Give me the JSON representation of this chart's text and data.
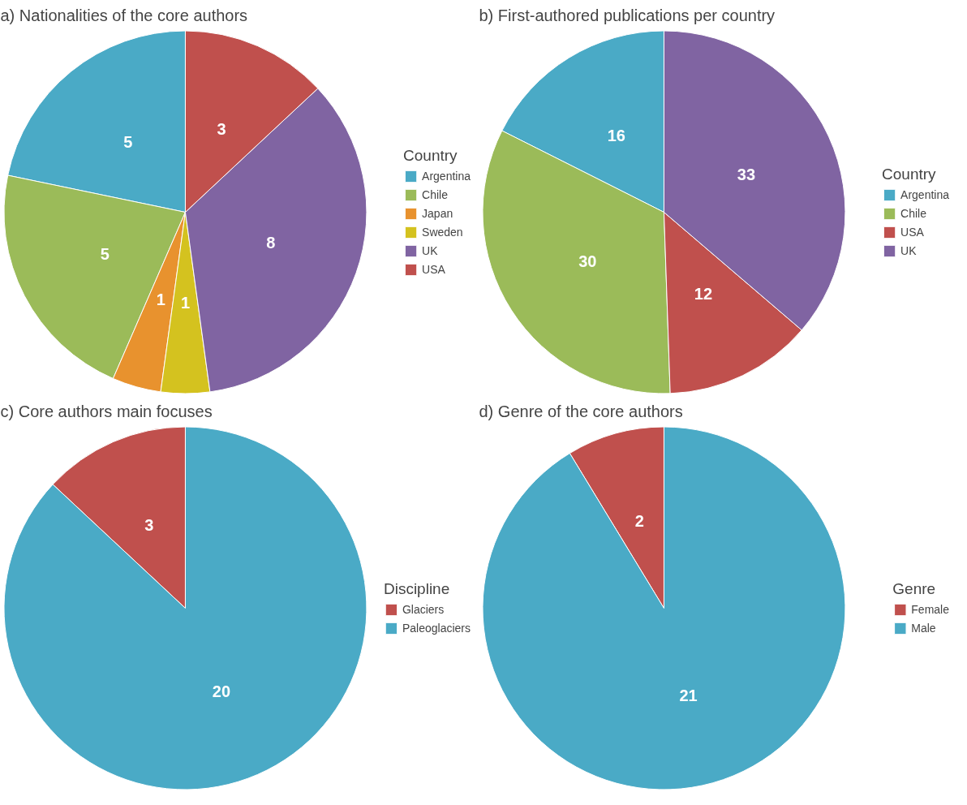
{
  "chart_data": [
    {
      "type": "pie",
      "title": "a) Nationalities of the core authors",
      "legend_title": "Country",
      "legend": "right",
      "data_labels": true,
      "categories": [
        "Argentina",
        "Chile",
        "Japan",
        "Sweden",
        "UK",
        "USA"
      ],
      "values": [
        5,
        5,
        1,
        1,
        8,
        3
      ],
      "colors": [
        "#4aaac6",
        "#9bbb59",
        "#e8922e",
        "#d4c21f",
        "#8064a2",
        "#c0504d"
      ]
    },
    {
      "type": "pie",
      "title": "b) First-authored publications per country",
      "legend_title": "Country",
      "legend": "right",
      "data_labels": true,
      "categories": [
        "Argentina",
        "Chile",
        "USA",
        "UK"
      ],
      "values": [
        16,
        30,
        12,
        33
      ],
      "colors": [
        "#4aaac6",
        "#9bbb59",
        "#c0504d",
        "#8064a2"
      ]
    },
    {
      "type": "pie",
      "title": "c) Core authors main focuses",
      "legend_title": "Discipline",
      "legend": "right",
      "data_labels": true,
      "categories": [
        "Glaciers",
        "Paleoglaciers"
      ],
      "values": [
        3,
        20
      ],
      "colors": [
        "#c0504d",
        "#4aaac6"
      ]
    },
    {
      "type": "pie",
      "title": "d) Genre of the core authors",
      "legend_title": "Genre",
      "legend": "right",
      "data_labels": true,
      "categories": [
        "Female",
        "Male"
      ],
      "values": [
        2,
        21
      ],
      "colors": [
        "#c0504d",
        "#4aaac6"
      ]
    }
  ]
}
